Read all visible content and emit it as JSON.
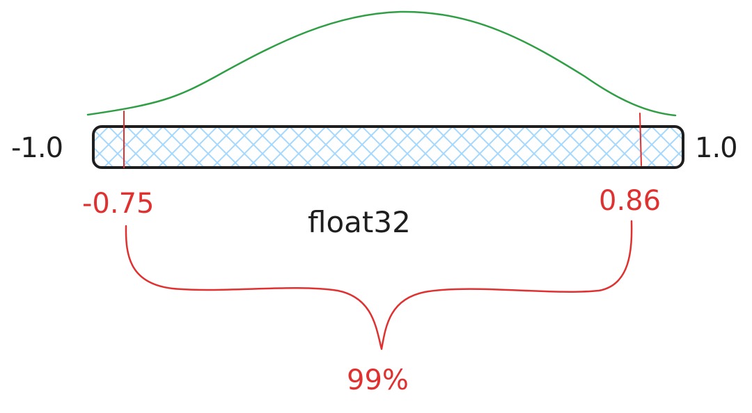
{
  "diagram": {
    "range_min_label": "-1.0",
    "range_max_label": "1.0",
    "clip_min_label": "-0.75",
    "clip_max_label": "0.86",
    "caption": "float32",
    "coverage_label": "99%",
    "colors": {
      "bar_outline": "#1e1e1e",
      "hatch": "#a5d8ff",
      "curve": "#2f9e44",
      "clip": "#e03131",
      "text": "#1e1e1e"
    }
  }
}
